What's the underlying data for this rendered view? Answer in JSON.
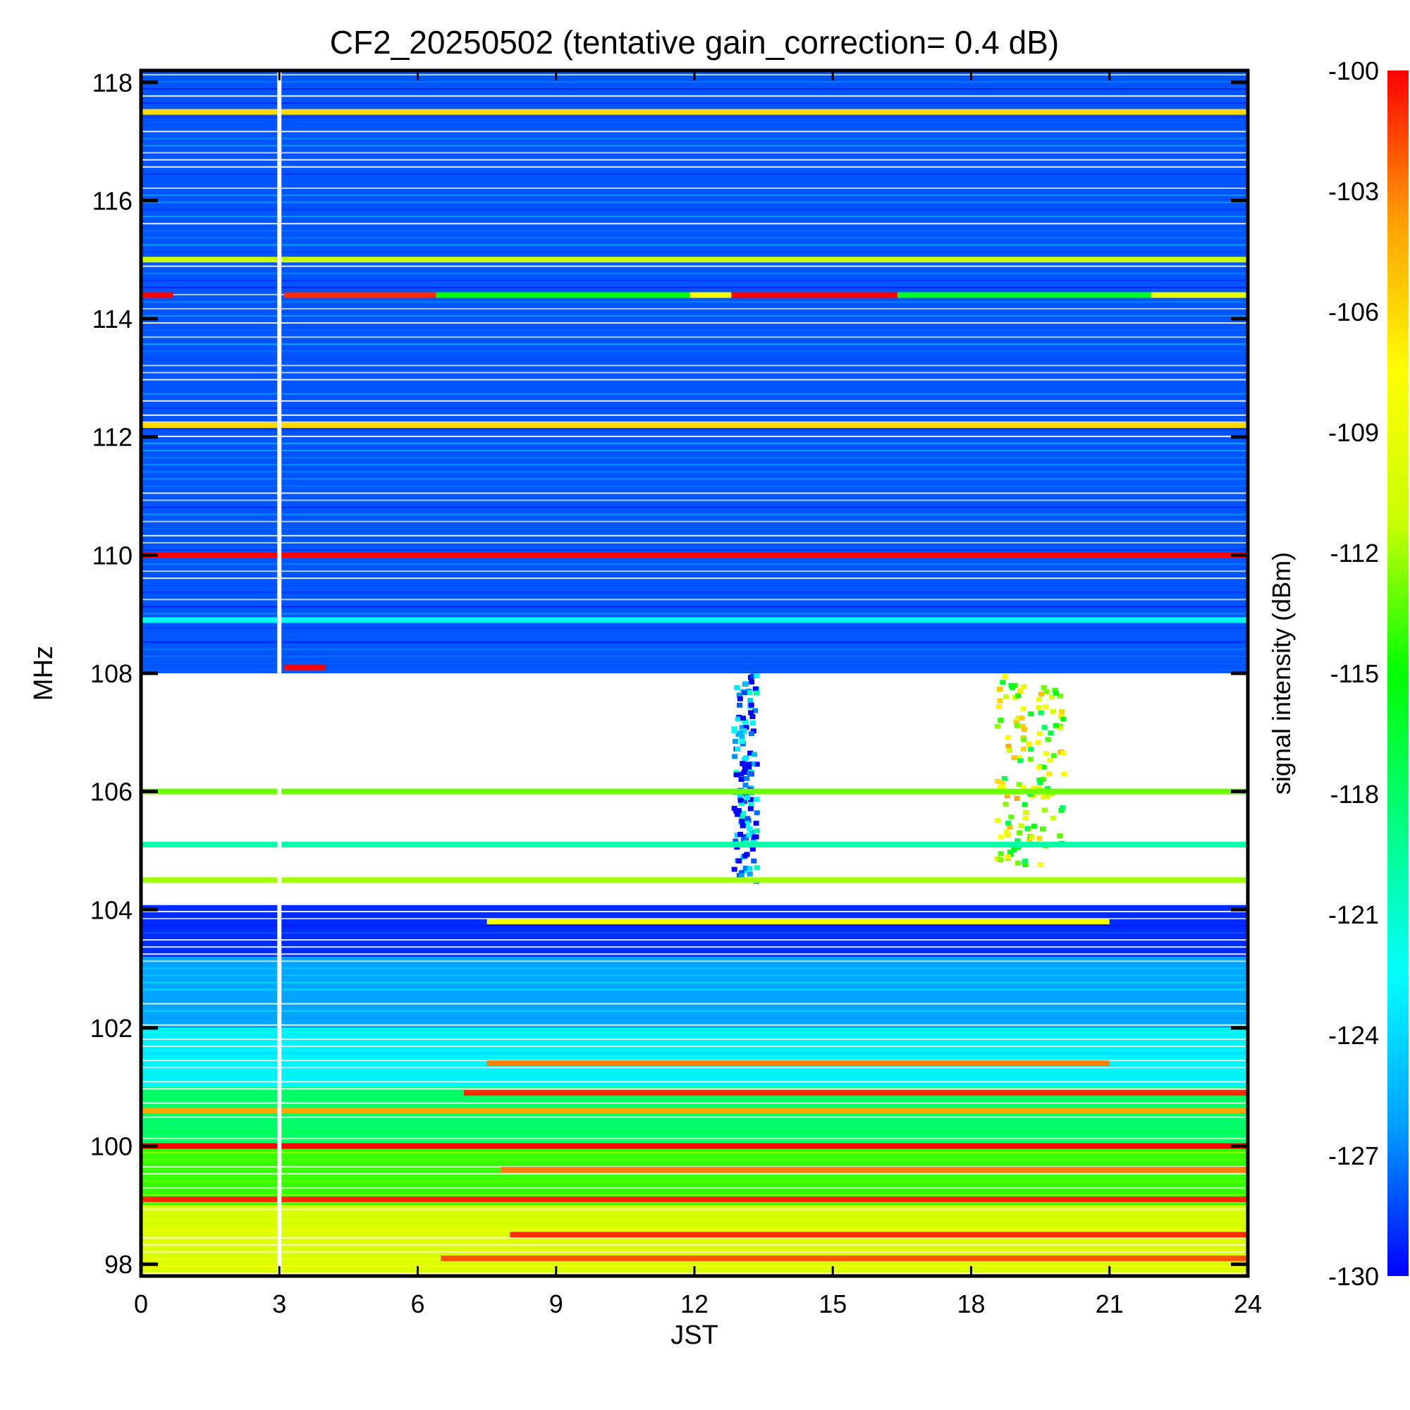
{
  "chart_data": {
    "type": "heatmap",
    "title": "CF2_20250502 (tentative gain_correction=  0.4 dB)",
    "xlabel": "JST",
    "ylabel": "MHz",
    "colorbar_label": "signal intensity (dBm)",
    "xlim": [
      0,
      24
    ],
    "ylim": [
      97.8,
      118.2
    ],
    "x_ticks": [
      0,
      3,
      6,
      9,
      12,
      15,
      18,
      21,
      24
    ],
    "y_ticks": [
      98,
      100,
      102,
      104,
      106,
      108,
      110,
      112,
      114,
      116,
      118
    ],
    "color_range": [
      -130,
      -100
    ],
    "colorbar_ticks": [
      -100,
      -103,
      -106,
      -109,
      -112,
      -115,
      -118,
      -121,
      -124,
      -127,
      -130
    ],
    "colormap": [
      "#0000ff",
      "#00a0ff",
      "#00ffff",
      "#00ff80",
      "#00ff00",
      "#c8ff00",
      "#ffff00",
      "#ffa000",
      "#ff0000"
    ],
    "background_level_dBm": [
      {
        "freq_range": [
          108.0,
          118.2
        ],
        "dBm": -128
      },
      {
        "freq_range": [
          103.2,
          104.1
        ],
        "dBm": -129
      },
      {
        "freq_range": [
          102.0,
          103.2
        ],
        "dBm": -126
      },
      {
        "freq_range": [
          101.0,
          102.0
        ],
        "dBm": -123
      },
      {
        "freq_range": [
          100.0,
          101.0
        ],
        "dBm": -118
      },
      {
        "freq_range": [
          99.0,
          100.0
        ],
        "dBm": -114
      },
      {
        "freq_range": [
          97.8,
          99.0
        ],
        "dBm": -110
      }
    ],
    "masked_band": {
      "freq_range": [
        104.1,
        108.0
      ],
      "note": "largely blank (no data)"
    },
    "data_gap": {
      "time": 3.0
    },
    "carriers": [
      {
        "freq": 117.5,
        "time": [
          0,
          24
        ],
        "dBm": -106
      },
      {
        "freq": 115.0,
        "time": [
          0,
          24
        ],
        "dBm": -111
      },
      {
        "freq": 114.4,
        "time": [
          0,
          0.7
        ],
        "dBm": -100
      },
      {
        "freq": 114.4,
        "time": [
          3.1,
          6.4
        ],
        "dBm": -101
      },
      {
        "freq": 114.4,
        "time": [
          6.4,
          11.9
        ],
        "dBm": -115
      },
      {
        "freq": 114.4,
        "time": [
          11.9,
          12.8
        ],
        "dBm": -108
      },
      {
        "freq": 114.4,
        "time": [
          12.8,
          16.4
        ],
        "dBm": -100
      },
      {
        "freq": 114.4,
        "time": [
          16.4,
          21.9
        ],
        "dBm": -116
      },
      {
        "freq": 114.4,
        "time": [
          21.9,
          24
        ],
        "dBm": -109
      },
      {
        "freq": 112.2,
        "time": [
          0,
          24
        ],
        "dBm": -106
      },
      {
        "freq": 110.0,
        "time": [
          0,
          24
        ],
        "dBm": -100
      },
      {
        "freq": 108.9,
        "time": [
          0,
          24
        ],
        "dBm": -122
      },
      {
        "freq": 108.1,
        "time": [
          3.1,
          4.0
        ],
        "dBm": -100
      },
      {
        "freq": 106.0,
        "time": [
          0,
          24
        ],
        "dBm": -113
      },
      {
        "freq": 105.1,
        "time": [
          0,
          24
        ],
        "dBm": -120
      },
      {
        "freq": 104.5,
        "time": [
          0,
          24
        ],
        "dBm": -112
      },
      {
        "freq": 103.8,
        "time": [
          7.5,
          21.0
        ],
        "dBm": -108
      },
      {
        "freq": 101.4,
        "time": [
          7.5,
          21.0
        ],
        "dBm": -103
      },
      {
        "freq": 100.9,
        "time": [
          7.0,
          24
        ],
        "dBm": -101
      },
      {
        "freq": 100.6,
        "time": [
          0,
          24
        ],
        "dBm": -104
      },
      {
        "freq": 100.0,
        "time": [
          0,
          24
        ],
        "dBm": -100
      },
      {
        "freq": 99.6,
        "time": [
          7.8,
          24
        ],
        "dBm": -103
      },
      {
        "freq": 99.1,
        "time": [
          0,
          24
        ],
        "dBm": -101
      },
      {
        "freq": 98.5,
        "time": [
          8.0,
          24
        ],
        "dBm": -101
      },
      {
        "freq": 98.1,
        "time": [
          6.5,
          24
        ],
        "dBm": -102
      }
    ],
    "bursts": [
      {
        "time_range": [
          18.5,
          20.0
        ],
        "freq_range": [
          104.8,
          108.0
        ],
        "dBm": -108
      },
      {
        "time_range": [
          12.8,
          13.3
        ],
        "freq_range": [
          104.5,
          108.0
        ],
        "dBm": -124
      }
    ],
    "grid": false,
    "legend": "colorbar at right"
  }
}
